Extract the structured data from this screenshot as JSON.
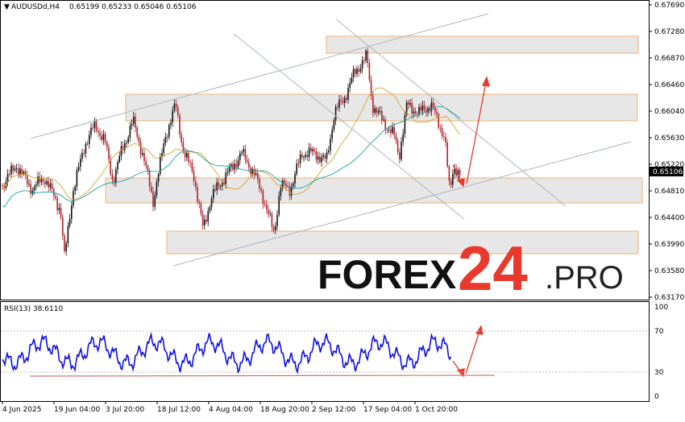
{
  "header": {
    "symbol": "AUDUSDd,H4",
    "quote": "0.65199 0.65233 0.65046 0.65106"
  },
  "price_axis": [
    "0.67690",
    "0.67280",
    "0.66870",
    "0.66460",
    "0.66040",
    "0.65630",
    "0.65220",
    "0.64810",
    "0.64400",
    "0.63990",
    "0.63580",
    "0.63170"
  ],
  "current_price": "0.65106",
  "rsi": {
    "label": "RSI(13) 38.6110",
    "axis": [
      "100",
      "70",
      "30",
      "0"
    ]
  },
  "time_axis": [
    "4 Jun 2025",
    "19 Jun 04:00",
    "3 Jul 20:00",
    "18 Jul 12:00",
    "4 Aug 04:00",
    "18 Aug 20:00",
    "2 Sep 12:00",
    "17 Sep 04:00",
    "1 Oct 20:00"
  ],
  "watermark": {
    "brand": "FOREX",
    "number": "24",
    "suffix": ".PRO"
  }
}
